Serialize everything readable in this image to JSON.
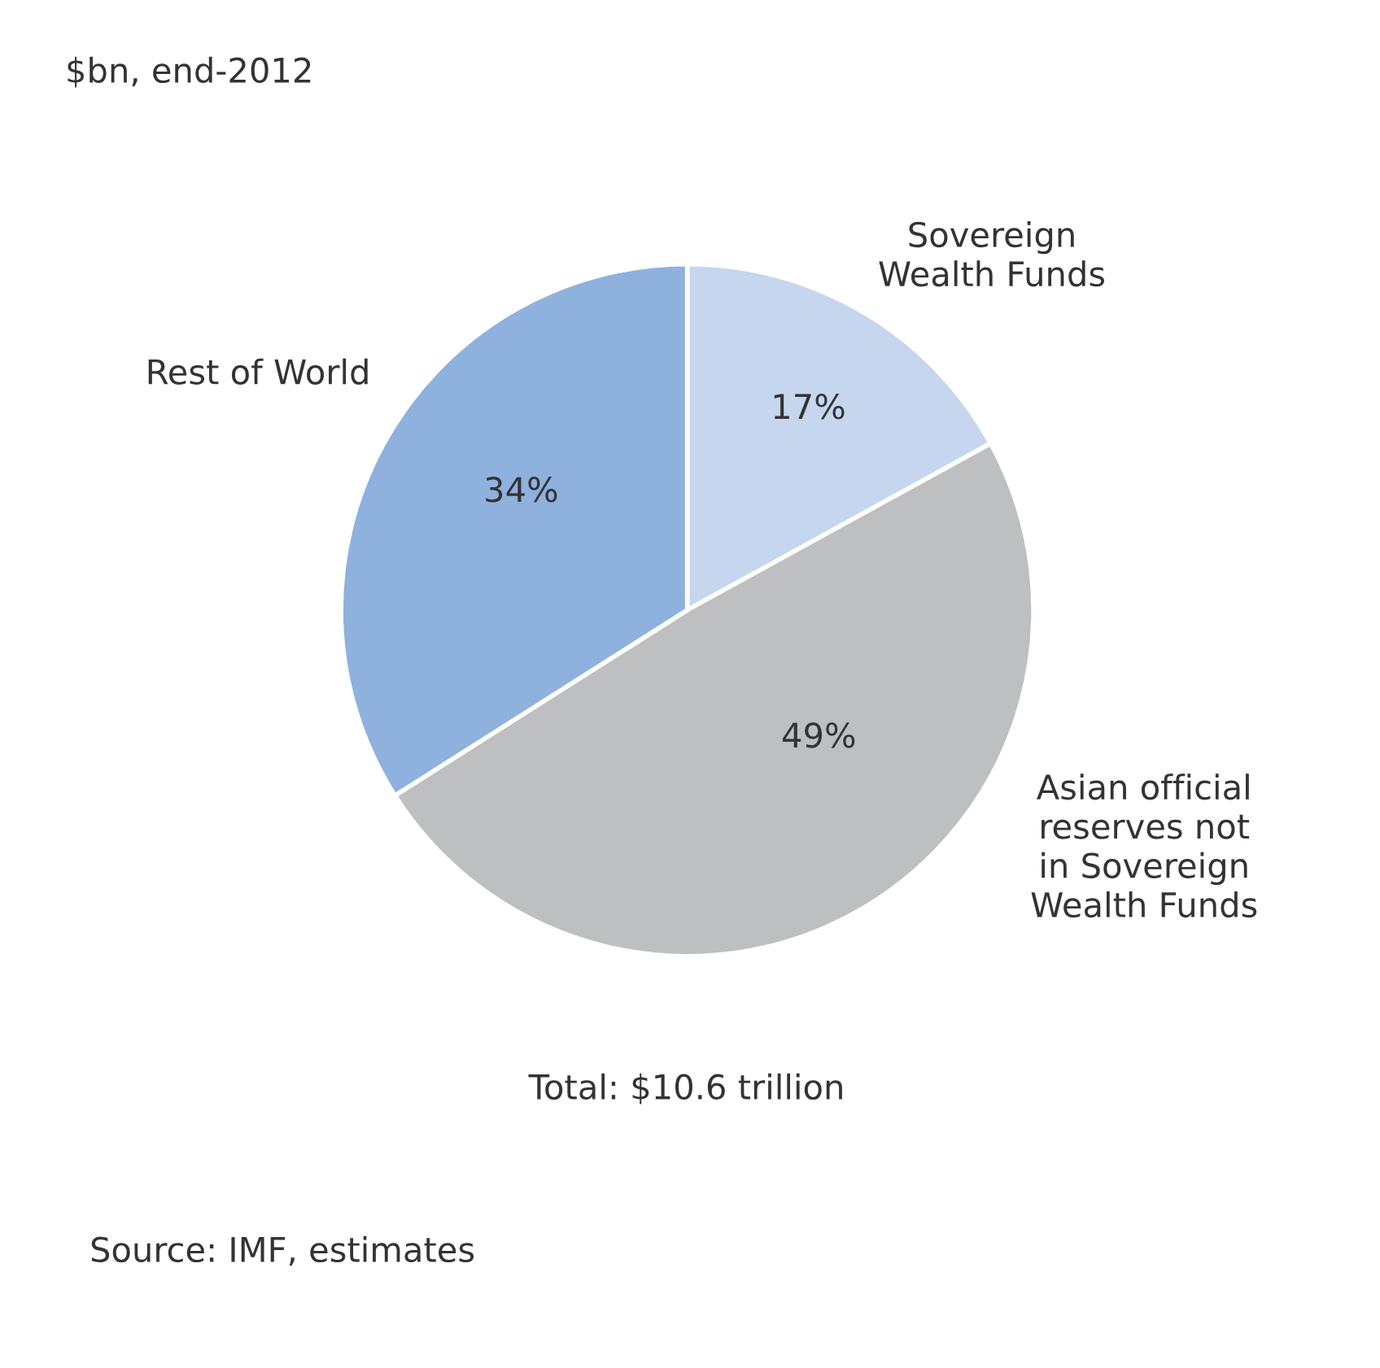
{
  "chart_data": {
    "type": "pie",
    "title": "$bn, end-2012",
    "categories": [
      "Sovereign\nWealth Funds",
      "Asian official\nreserves not\nin Sovereign\nWealth Funds",
      "Rest of World"
    ],
    "values": [
      17,
      49,
      34
    ],
    "value_labels": [
      "17%",
      "49%",
      "34%"
    ],
    "colors": [
      "#c6d6ef",
      "#bebfc1",
      "#8fb1dd"
    ],
    "annotations": [
      "Total: $10.6 trillion",
      "Source: IMF, estimates"
    ]
  }
}
